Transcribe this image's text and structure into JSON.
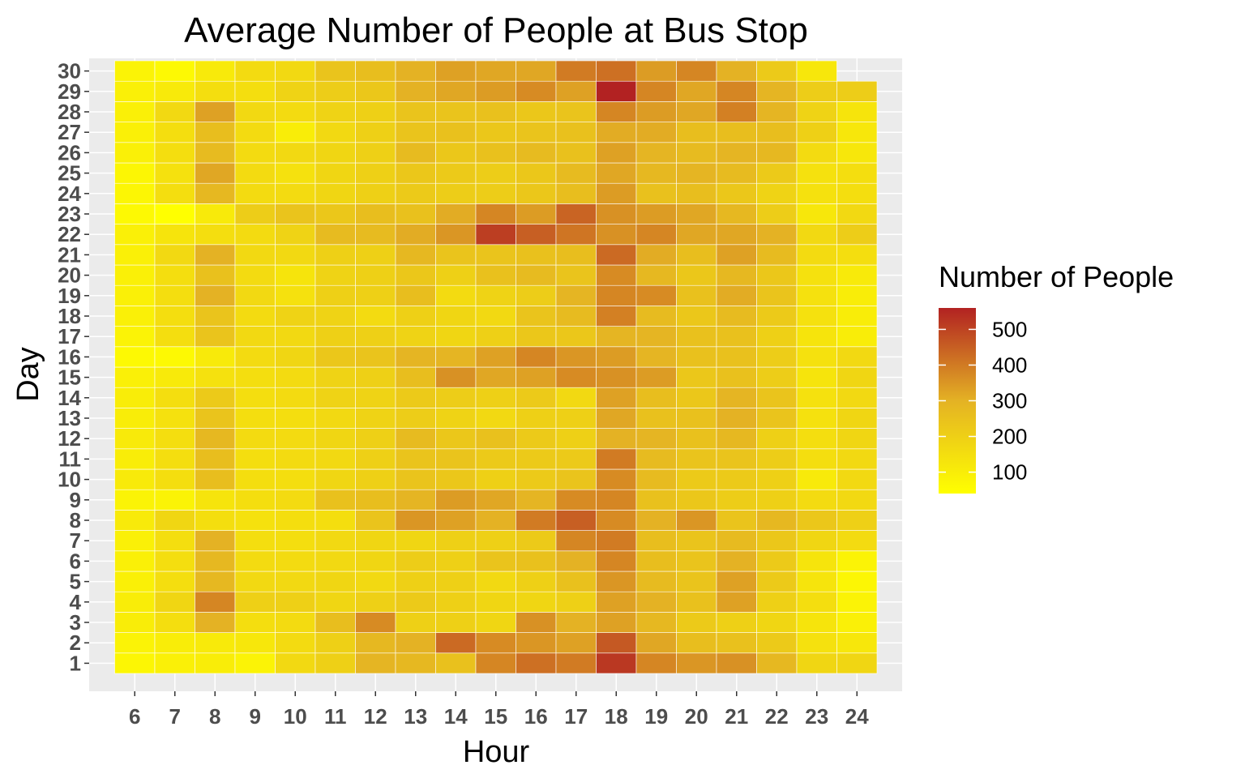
{
  "chart_data": {
    "type": "heatmap",
    "title": "Average Number of People at Bus Stop",
    "xlabel": "Hour",
    "ylabel": "Day",
    "x": [
      6,
      7,
      8,
      9,
      10,
      11,
      12,
      13,
      14,
      15,
      16,
      17,
      18,
      19,
      20,
      21,
      22,
      23,
      24
    ],
    "y": [
      1,
      2,
      3,
      4,
      5,
      6,
      7,
      8,
      9,
      10,
      11,
      12,
      13,
      14,
      15,
      16,
      17,
      18,
      19,
      20,
      21,
      22,
      23,
      24,
      25,
      26,
      27,
      28,
      29,
      30
    ],
    "values": [
      [
        70,
        90,
        100,
        80,
        170,
        200,
        290,
        280,
        250,
        380,
        420,
        400,
        520,
        380,
        350,
        360,
        280,
        180,
        180
      ],
      [
        80,
        100,
        110,
        120,
        160,
        200,
        280,
        300,
        430,
        370,
        350,
        330,
        460,
        320,
        260,
        250,
        220,
        140,
        120
      ],
      [
        100,
        150,
        300,
        150,
        160,
        260,
        370,
        200,
        200,
        180,
        360,
        300,
        330,
        280,
        220,
        200,
        180,
        130,
        90
      ],
      [
        100,
        180,
        380,
        200,
        200,
        180,
        200,
        220,
        200,
        180,
        180,
        200,
        330,
        300,
        250,
        330,
        200,
        150,
        80
      ],
      [
        90,
        150,
        280,
        170,
        170,
        180,
        170,
        200,
        200,
        170,
        200,
        250,
        350,
        270,
        240,
        330,
        220,
        130,
        70
      ],
      [
        90,
        150,
        280,
        160,
        160,
        170,
        180,
        210,
        200,
        240,
        250,
        300,
        380,
        260,
        240,
        300,
        220,
        130,
        80
      ],
      [
        90,
        150,
        300,
        150,
        150,
        170,
        180,
        180,
        200,
        200,
        220,
        380,
        400,
        260,
        240,
        270,
        230,
        180,
        160
      ],
      [
        110,
        180,
        150,
        140,
        150,
        150,
        240,
        350,
        330,
        300,
        400,
        450,
        370,
        300,
        350,
        240,
        280,
        230,
        200
      ],
      [
        80,
        80,
        130,
        150,
        160,
        250,
        260,
        290,
        340,
        320,
        290,
        370,
        380,
        250,
        230,
        210,
        200,
        160,
        170
      ],
      [
        110,
        150,
        260,
        150,
        150,
        180,
        200,
        240,
        230,
        200,
        220,
        240,
        370,
        270,
        220,
        220,
        200,
        110,
        170
      ],
      [
        100,
        150,
        260,
        150,
        160,
        170,
        200,
        240,
        240,
        220,
        220,
        220,
        400,
        270,
        240,
        240,
        210,
        150,
        170
      ],
      [
        110,
        150,
        280,
        160,
        160,
        180,
        200,
        270,
        230,
        250,
        220,
        200,
        300,
        290,
        250,
        280,
        200,
        150,
        180
      ],
      [
        100,
        140,
        240,
        150,
        150,
        170,
        190,
        210,
        190,
        170,
        200,
        200,
        320,
        250,
        250,
        300,
        240,
        140,
        180
      ],
      [
        100,
        150,
        220,
        150,
        160,
        190,
        190,
        220,
        210,
        200,
        220,
        170,
        330,
        260,
        230,
        290,
        240,
        140,
        170
      ],
      [
        90,
        110,
        140,
        150,
        160,
        190,
        200,
        260,
        360,
        320,
        330,
        370,
        360,
        340,
        230,
        250,
        210,
        130,
        180
      ],
      [
        60,
        60,
        110,
        160,
        180,
        230,
        240,
        290,
        290,
        330,
        380,
        350,
        340,
        290,
        250,
        250,
        210,
        140,
        170
      ],
      [
        80,
        150,
        240,
        170,
        170,
        200,
        200,
        190,
        180,
        200,
        230,
        230,
        290,
        290,
        250,
        250,
        200,
        130,
        100
      ],
      [
        90,
        150,
        240,
        160,
        190,
        190,
        160,
        200,
        180,
        170,
        240,
        270,
        390,
        270,
        230,
        270,
        220,
        140,
        100
      ],
      [
        90,
        150,
        300,
        170,
        140,
        200,
        200,
        260,
        160,
        190,
        210,
        290,
        380,
        370,
        250,
        310,
        240,
        140,
        100
      ],
      [
        90,
        150,
        250,
        160,
        130,
        190,
        200,
        230,
        200,
        250,
        270,
        240,
        370,
        280,
        230,
        280,
        230,
        140,
        110
      ],
      [
        90,
        170,
        300,
        170,
        170,
        200,
        200,
        280,
        240,
        240,
        250,
        260,
        430,
        310,
        260,
        330,
        270,
        160,
        150
      ],
      [
        90,
        130,
        150,
        160,
        190,
        270,
        270,
        310,
        350,
        510,
        450,
        410,
        360,
        380,
        320,
        320,
        300,
        170,
        210
      ],
      [
        60,
        40,
        110,
        210,
        240,
        230,
        260,
        250,
        310,
        380,
        340,
        440,
        360,
        340,
        320,
        280,
        210,
        120,
        170
      ],
      [
        70,
        150,
        280,
        160,
        160,
        180,
        200,
        220,
        210,
        210,
        230,
        260,
        340,
        250,
        260,
        230,
        190,
        140,
        150
      ],
      [
        70,
        140,
        320,
        160,
        140,
        180,
        200,
        230,
        220,
        210,
        230,
        270,
        320,
        280,
        290,
        270,
        220,
        140,
        150
      ],
      [
        90,
        150,
        270,
        160,
        170,
        180,
        200,
        270,
        230,
        250,
        270,
        250,
        330,
        290,
        270,
        290,
        280,
        160,
        120
      ],
      [
        90,
        150,
        260,
        160,
        100,
        170,
        200,
        240,
        250,
        230,
        240,
        250,
        310,
        310,
        260,
        260,
        260,
        200,
        120
      ],
      [
        90,
        170,
        330,
        170,
        160,
        190,
        200,
        240,
        240,
        250,
        230,
        240,
        380,
        340,
        320,
        390,
        290,
        190,
        130
      ],
      [
        90,
        110,
        150,
        150,
        190,
        210,
        230,
        300,
        320,
        340,
        370,
        330,
        560,
        380,
        320,
        380,
        290,
        210,
        210
      ],
      [
        80,
        60,
        110,
        160,
        170,
        240,
        260,
        300,
        330,
        320,
        320,
        400,
        420,
        340,
        380,
        300,
        220,
        120,
        null
      ]
    ],
    "colorscale": {
      "low": "#ffff00",
      "mid": "#e4b224",
      "high": "#b22222"
    },
    "legend": {
      "title": "Number of People",
      "position": "right",
      "breaks": [
        100,
        200,
        300,
        400,
        500
      ],
      "break_labels": [
        "100",
        "200",
        "300",
        "400",
        "500"
      ],
      "range": [
        40,
        560
      ]
    },
    "panel_background": "#ebebeb",
    "grid": true
  }
}
